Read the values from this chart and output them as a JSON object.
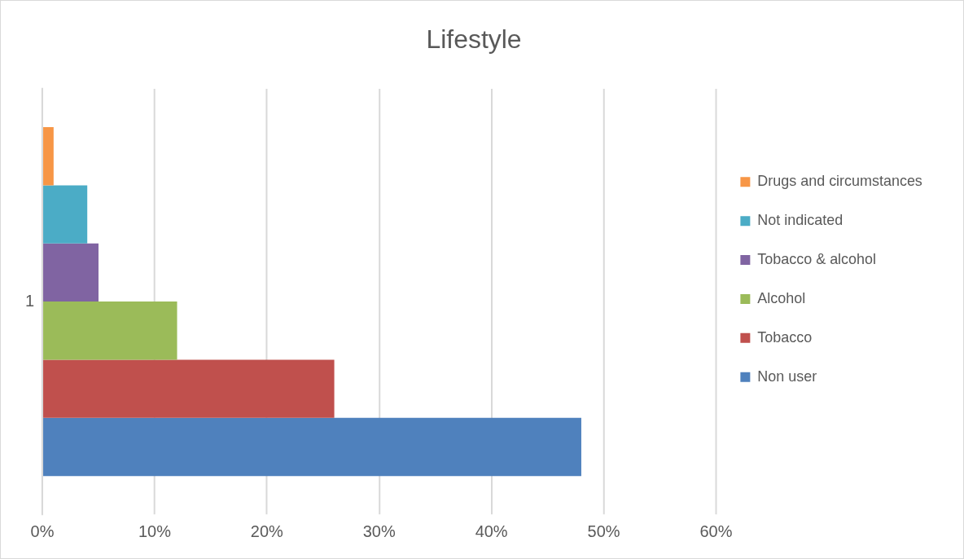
{
  "chart_data": {
    "type": "bar",
    "orientation": "horizontal",
    "title": "Lifestyle",
    "categories": [
      "1"
    ],
    "series": [
      {
        "name": "Drugs and circumstances",
        "color": "#f79646",
        "values": [
          1
        ]
      },
      {
        "name": "Not indicated",
        "color": "#4bacc6",
        "values": [
          4
        ]
      },
      {
        "name": "Tobacco & alcohol",
        "color": "#8064a2",
        "values": [
          5
        ]
      },
      {
        "name": "Alcohol",
        "color": "#9bbb59",
        "values": [
          12
        ]
      },
      {
        "name": "Tobacco",
        "color": "#c0504d",
        "values": [
          26
        ]
      },
      {
        "name": "Non user",
        "color": "#4f81bd",
        "values": [
          48
        ]
      }
    ],
    "xlim": [
      0,
      60
    ],
    "xticks": [
      {
        "value": 0,
        "label": "0%"
      },
      {
        "value": 10,
        "label": "10%"
      },
      {
        "value": 20,
        "label": "20%"
      },
      {
        "value": 30,
        "label": "30%"
      },
      {
        "value": 40,
        "label": "40%"
      },
      {
        "value": 50,
        "label": "50%"
      },
      {
        "value": 60,
        "label": "60%"
      }
    ],
    "grid": "x",
    "legend": "right"
  }
}
